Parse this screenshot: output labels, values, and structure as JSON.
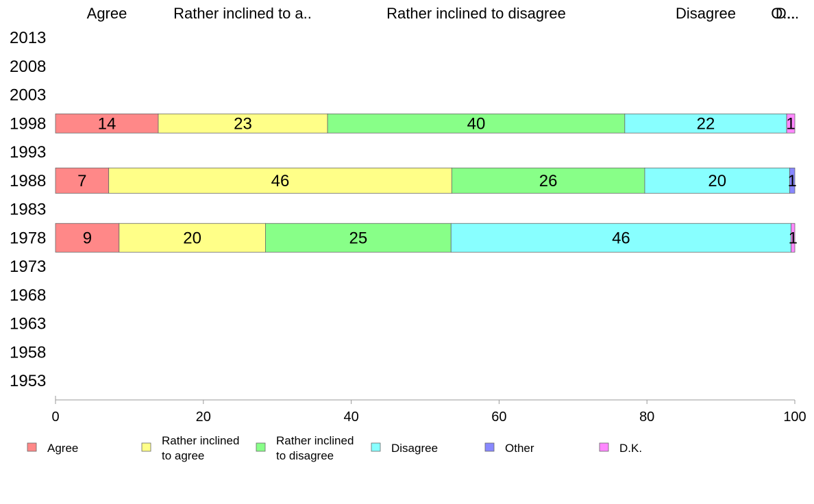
{
  "chart_data": {
    "type": "bar",
    "orientation": "horizontal",
    "stacked": true,
    "title": "",
    "xlabel": "",
    "ylabel": "",
    "xlim": [
      0,
      100
    ],
    "x_ticks": [
      "0",
      "20",
      "40",
      "60",
      "80",
      "100"
    ],
    "categories": [
      "2013",
      "2008",
      "2003",
      "1998",
      "1993",
      "1988",
      "1983",
      "1978",
      "1973",
      "1968",
      "1963",
      "1958",
      "1953"
    ],
    "top_labels": [
      "Agree",
      "Rather inclined to a..",
      "Rather inclined to disagree",
      "Disagree",
      "O...",
      "D..."
    ],
    "series": [
      {
        "name": "Agree",
        "legend": [
          "Agree"
        ],
        "color": "#ff8888",
        "values": [
          null,
          null,
          null,
          13.9,
          null,
          7.2,
          null,
          8.6,
          null,
          null,
          null,
          null,
          null
        ],
        "labels": [
          "",
          "",
          "",
          "14",
          "",
          "7",
          "",
          "9",
          "",
          "",
          "",
          "",
          ""
        ]
      },
      {
        "name": "Rather inclined to agree",
        "legend": [
          "Rather inclined",
          "to agree"
        ],
        "color": "#ffff88",
        "values": [
          null,
          null,
          null,
          22.9,
          null,
          46.4,
          null,
          19.8,
          null,
          null,
          null,
          null,
          null
        ],
        "labels": [
          "",
          "",
          "",
          "23",
          "",
          "46",
          "",
          "20",
          "",
          "",
          "",
          "",
          ""
        ]
      },
      {
        "name": "Rather inclined to disagree",
        "legend": [
          "Rather inclined",
          "to disagree"
        ],
        "color": "#88ff88",
        "values": [
          null,
          null,
          null,
          40.2,
          null,
          26.1,
          null,
          25.1,
          null,
          null,
          null,
          null,
          null
        ],
        "labels": [
          "",
          "",
          "",
          "40",
          "",
          "26",
          "",
          "25",
          "",
          "",
          "",
          "",
          ""
        ]
      },
      {
        "name": "Disagree",
        "legend": [
          "Disagree"
        ],
        "color": "#88ffff",
        "values": [
          null,
          null,
          null,
          21.9,
          null,
          19.6,
          null,
          46.0,
          null,
          null,
          null,
          null,
          null
        ],
        "labels": [
          "",
          "",
          "",
          "22",
          "",
          "20",
          "",
          "46",
          "",
          "",
          "",
          "",
          ""
        ]
      },
      {
        "name": "Other",
        "legend": [
          "Other"
        ],
        "color": "#8888ff",
        "values": [
          null,
          null,
          null,
          0,
          null,
          0.7,
          null,
          0,
          null,
          null,
          null,
          null,
          null
        ],
        "labels": [
          "",
          "",
          "",
          "",
          "",
          "1",
          "",
          "",
          "",
          "",
          "",
          "",
          ""
        ]
      },
      {
        "name": "D.K.",
        "legend": [
          "D.K."
        ],
        "color": "#ff88ff",
        "values": [
          null,
          null,
          null,
          1.1,
          null,
          0,
          null,
          0.5,
          null,
          null,
          null,
          null,
          null
        ],
        "labels": [
          "",
          "",
          "",
          "1",
          "",
          "",
          "",
          "1",
          "",
          "",
          "",
          "",
          ""
        ]
      }
    ],
    "legend_position": "bottom",
    "grid": false
  }
}
